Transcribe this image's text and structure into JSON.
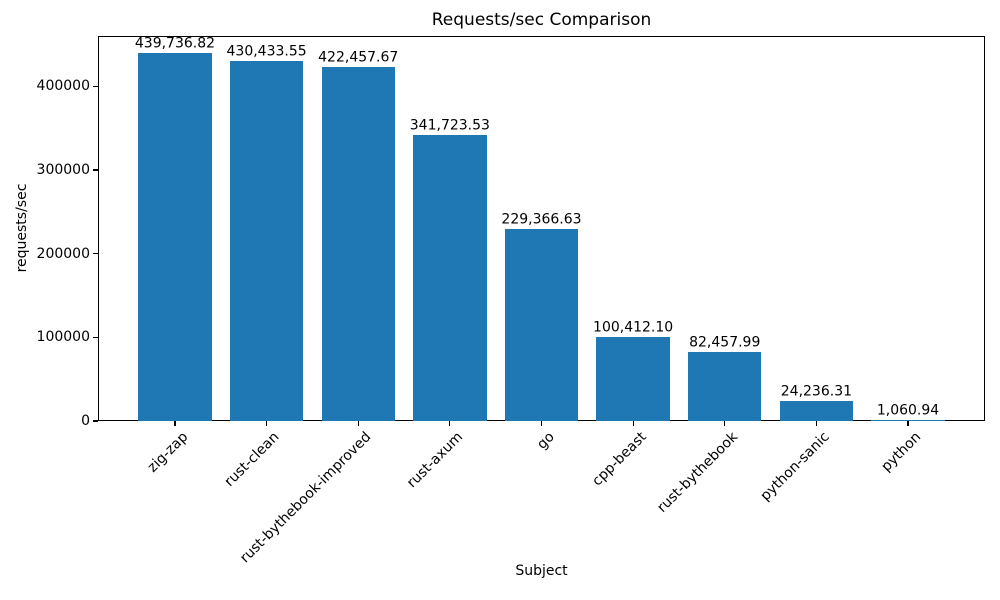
{
  "figure": {
    "title": "Requests/sec Comparison",
    "xlabel": "Subject",
    "ylabel": "requests/sec"
  },
  "chart_data": {
    "type": "bar",
    "title": "Requests/sec Comparison",
    "xlabel": "Subject",
    "ylabel": "requests/sec",
    "categories": [
      "zig-zap",
      "rust-clean",
      "rust-bythebook-improved",
      "rust-axum",
      "go",
      "cpp-beast",
      "rust-bythebook",
      "python-sanic",
      "python"
    ],
    "values": [
      439736.82,
      430433.55,
      422457.67,
      341723.53,
      229366.63,
      100412.1,
      82457.99,
      24236.31,
      1060.94
    ],
    "bar_labels": [
      "439,736.82",
      "430,433.55",
      "422,457.67",
      "341,723.53",
      "229,366.63",
      "100,412.10",
      "82,457.99",
      "24,236.31",
      "1,060.94"
    ],
    "yticks": [
      0,
      100000,
      200000,
      300000,
      400000
    ],
    "ytick_labels": [
      "0",
      "100000",
      "200000",
      "300000",
      "400000"
    ],
    "ylim": [
      0,
      460000
    ],
    "bar_color": "#1f77b4",
    "background_color": "#ffffff",
    "text_color": "#000000",
    "grid": false,
    "legend": false,
    "xtick_rotation_deg": 45,
    "bar_relative_width": 0.8
  }
}
